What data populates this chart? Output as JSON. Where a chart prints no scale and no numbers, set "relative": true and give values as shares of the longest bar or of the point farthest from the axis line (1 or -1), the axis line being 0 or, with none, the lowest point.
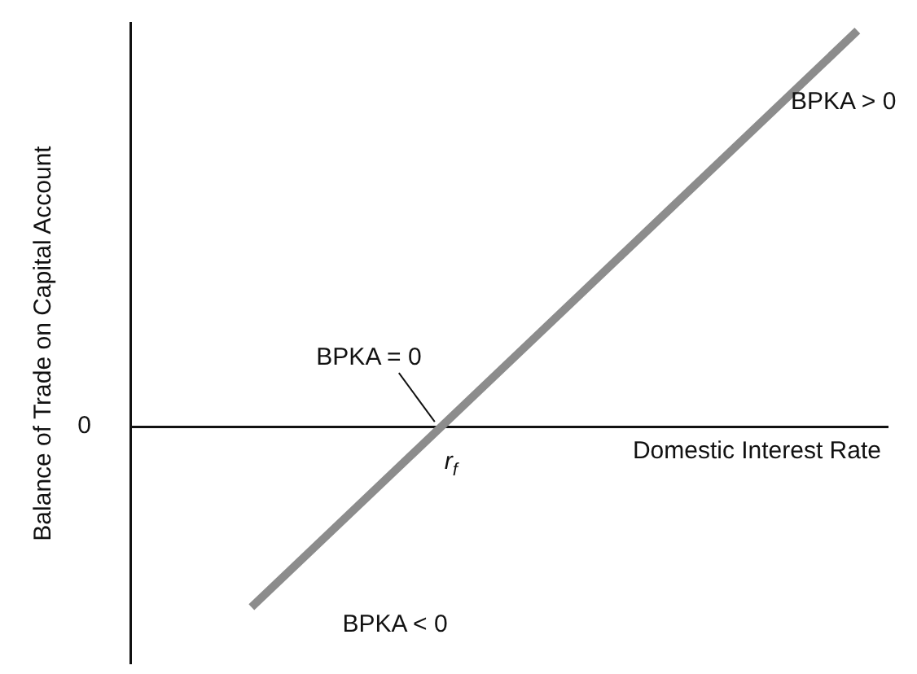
{
  "chart_data": {
    "type": "line",
    "relative": true,
    "categories": [
      null,
      null
    ],
    "series": [
      {
        "color": "#8c8c8c",
        "values": [
          -0.456,
          1
        ]
      }
    ],
    "ylabel": "Balance of Trade on Capital Account",
    "xlabel": "Domestic Interest Rate",
    "grid": false,
    "legend": false,
    "marker": "none",
    "line_style": "solid",
    "annotations": [
      "BPKA > 0",
      "BPKA = 0",
      "BPKA < 0",
      "r$_{f}$",
      "0"
    ]
  }
}
